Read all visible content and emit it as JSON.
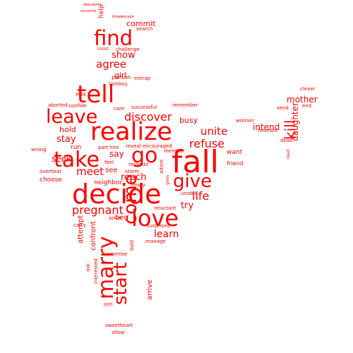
{
  "words": {
    "decide": "decide",
    "fall": "fall",
    "realize": "realize",
    "marry": "marry",
    "tell": "tell",
    "take": "take",
    "love": "love",
    "find": "find",
    "go": "go",
    "leave": "leave",
    "give": "give",
    "start": "start",
    "come": "come",
    "discover": "discover",
    "unite": "unite",
    "refuse": "refuse",
    "kill": "kill",
    "pregnant": "pregnant",
    "agree": "agree",
    "show": "show",
    "meet": "meet",
    "life": "life",
    "learn": "learn",
    "try": "try",
    "reach": "reach",
    "daughter": "daughter",
    "mother": "mother",
    "stay": "stay",
    "seek": "seek",
    "say": "say",
    "intend": "intend",
    "busy": "busy",
    "hold": "hold",
    "girl": "girl",
    "commit": "commit",
    "confront": "confront",
    "attempt": "attempt",
    "run": "run",
    "beg": "beg",
    "see": "see",
    "arrive": "arrive",
    "want": "want",
    "friend": "friend",
    "neighbor": "neighbor",
    "choose": "choose",
    "help": "help",
    "challenge": "challenge",
    "search": "search",
    "person": "person",
    "entrap": "entrap",
    "tomboy": "tomboy",
    "mix": "mix",
    "aborted": "aborted",
    "confide": "confide",
    "successful": "successful",
    "care": "care",
    "hire": "hire",
    "part": "part",
    "reveal": "reveal",
    "encouraged": "encouraged",
    "relocate": "relocate",
    "wrong": "wrong",
    "overhear": "overhear",
    "carry": "carry",
    "solve": "solve",
    "surprised": "surprised",
    "reluctant": "reluctant",
    "unable": "unable",
    "ready": "ready",
    "promise": "promise",
    "bold": "bold",
    "manage": "manage",
    "ask": "ask",
    "interested": "interested",
    "join": "join",
    "sweetheart": "sweetheart",
    "allow": "allow",
    "member": "member",
    "adore": "adore",
    "storm": "storm",
    "feel": "feel",
    "woman": "woman",
    "remember": "remember",
    "send": "send",
    "clever": "clever",
    "end": "end",
    "dead": "dead",
    "read": "read",
    "hesitant": "hesitant",
    "insist": "insist",
    "debutante": "debutante",
    "reconcile": "reconcile",
    "break": "break",
    "escape": "escape",
    "goes": "goes"
  }
}
